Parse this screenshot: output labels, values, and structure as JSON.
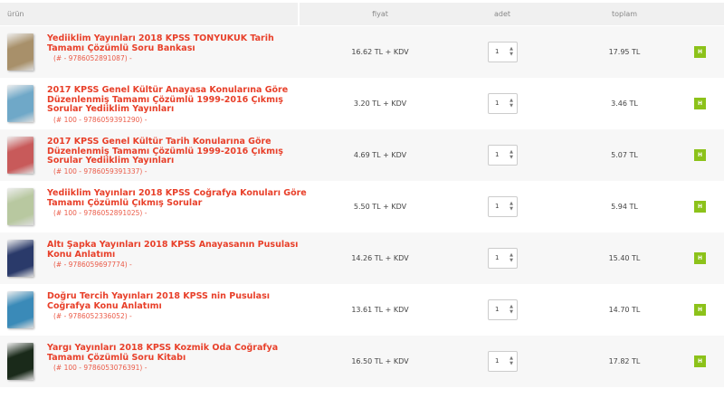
{
  "header": {
    "product": "ürün",
    "price": "fiyat",
    "qty": "adet",
    "total": "toplam"
  },
  "remove_icon_glyph": "H",
  "accent": "#e8402a",
  "button_color": "#8cc21a",
  "items": [
    {
      "title": "Yediiklim Yayınları 2018 KPSS TONYUKUK Tarih Tamamı Çözümlü Soru Bankası",
      "code": "(# - 9786052891087) -",
      "price": "16.62 TL + KDV",
      "qty": "1",
      "total": "17.95 TL",
      "cover": "#a8906a"
    },
    {
      "title": "2017 KPSS Genel Kültür Anayasa Konularına Göre Düzenlenmiş Tamamı Çözümlü 1999-2016 Çıkmış Sorular Yediiklim Yayınları",
      "code": "(# 100 - 9786059391290) -",
      "price": "3.20 TL + KDV",
      "qty": "1",
      "total": "3.46 TL",
      "cover": "#6fa8c8"
    },
    {
      "title": "2017 KPSS Genel Kültür Tarih Konularına Göre Düzenlenmiş Tamamı Çözümlü 1999-2016 Çıkmış Sorular Yediiklim Yayınları",
      "code": "(# 100 - 9786059391337) -",
      "price": "4.69 TL + KDV",
      "qty": "1",
      "total": "5.07 TL",
      "cover": "#c85a5a"
    },
    {
      "title": "Yediiklim Yayınları 2018 KPSS Coğrafya Konuları Göre Tamamı Çözümlü Çıkmış Sorular",
      "code": "(# 100 - 9786052891025) -",
      "price": "5.50 TL + KDV",
      "qty": "1",
      "total": "5.94 TL",
      "cover": "#b8c8a0"
    },
    {
      "title": "Altı Şapka Yayınları 2018 KPSS Anayasanın Pusulası Konu Anlatımı",
      "code": "(# - 9786059697774) -",
      "price": "14.26 TL + KDV",
      "qty": "1",
      "total": "15.40 TL",
      "cover": "#2a3a6a"
    },
    {
      "title": "Doğru Tercih Yayınları 2018 KPSS nin Pusulası Coğrafya Konu Anlatımı",
      "code": "(# - 9786052336052) -",
      "price": "13.61 TL + KDV",
      "qty": "1",
      "total": "14.70 TL",
      "cover": "#3a8ab8"
    },
    {
      "title": "Yargı Yayınları 2018 KPSS Kozmik Oda Coğrafya Tamamı Çözümlü Soru Kitabı",
      "code": "(# 100 - 9786053076391) -",
      "price": "16.50 TL + KDV",
      "qty": "1",
      "total": "17.82 TL",
      "cover": "#1a2a1a"
    }
  ]
}
